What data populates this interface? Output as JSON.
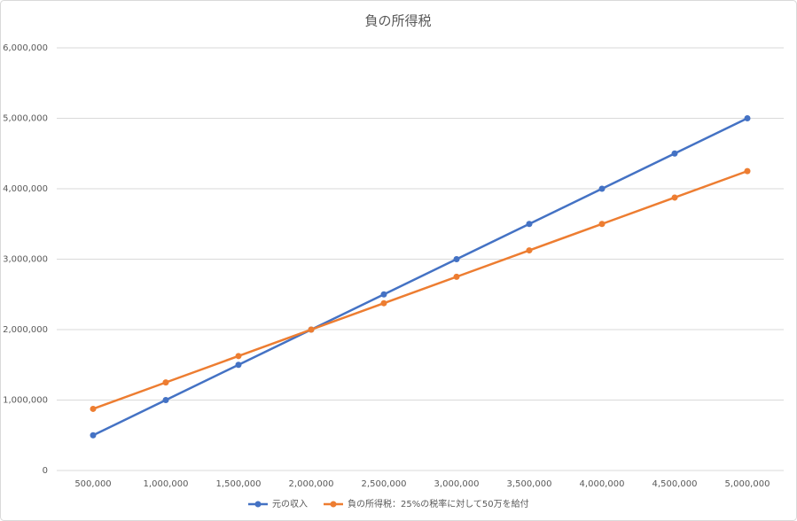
{
  "chart_data": {
    "type": "line",
    "title": "負の所得税",
    "categories": [
      "500,000",
      "1,000,000",
      "1,500,000",
      "2,000,000",
      "2,500,000",
      "3,000,000",
      "3,500,000",
      "4,000,000",
      "4,500,000",
      "5,000,000"
    ],
    "series": [
      {
        "name": "元の収入",
        "color": "#4472c4",
        "values": [
          500000,
          1000000,
          1500000,
          2000000,
          2500000,
          3000000,
          3500000,
          4000000,
          4500000,
          5000000
        ]
      },
      {
        "name": "負の所得税：25%の税率に対して50万を給付",
        "color": "#ed7d31",
        "values": [
          875000,
          1250000,
          1625000,
          2000000,
          2375000,
          2750000,
          3125000,
          3500000,
          3875000,
          4250000
        ]
      }
    ],
    "ylim": [
      0,
      6000000
    ],
    "yticks": [
      0,
      {
        "value": 1000000,
        "label": "1,000,000"
      },
      {
        "value": 2000000,
        "label": "2,000,000"
      },
      {
        "value": 3000000,
        "label": "3,000,000"
      },
      {
        "value": 4000000,
        "label": "4,000,000"
      },
      {
        "value": 5000000,
        "label": "5,000,000"
      },
      {
        "value": 6000000,
        "label": "6,000,000"
      }
    ],
    "grid": true,
    "legend": "bottom"
  }
}
